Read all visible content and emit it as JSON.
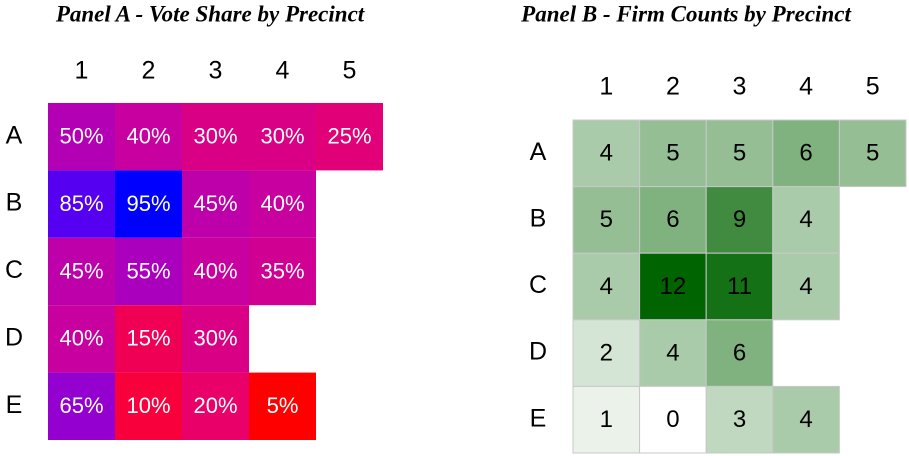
{
  "chart_data": [
    {
      "type": "heatmap",
      "title": "Panel A - Vote Share by Precinct",
      "x_categories": [
        "1",
        "2",
        "3",
        "4",
        "5"
      ],
      "y_categories": [
        "A",
        "B",
        "C",
        "D",
        "E"
      ],
      "values": [
        [
          50,
          40,
          30,
          30,
          25
        ],
        [
          85,
          95,
          45,
          40,
          null
        ],
        [
          45,
          55,
          40,
          35,
          null
        ],
        [
          40,
          15,
          30,
          null,
          null
        ],
        [
          65,
          10,
          20,
          5,
          null
        ]
      ],
      "value_labels": [
        [
          "50%",
          "40%",
          "30%",
          "30%",
          "25%"
        ],
        [
          "85%",
          "95%",
          "45%",
          "40%",
          null
        ],
        [
          "45%",
          "55%",
          "40%",
          "35%",
          null
        ],
        [
          "40%",
          "15%",
          "30%",
          null,
          null
        ],
        [
          "65%",
          "10%",
          "20%",
          "5%",
          null
        ]
      ],
      "colormap": [
        "#ff0000",
        "#0000ff"
      ]
    },
    {
      "type": "heatmap",
      "title": "Panel B - Firm Counts by Precinct",
      "x_categories": [
        "1",
        "2",
        "3",
        "4",
        "5"
      ],
      "y_categories": [
        "A",
        "B",
        "C",
        "D",
        "E"
      ],
      "values": [
        [
          4,
          5,
          5,
          6,
          5
        ],
        [
          5,
          6,
          9,
          4,
          null
        ],
        [
          4,
          12,
          11,
          4,
          null
        ],
        [
          2,
          4,
          6,
          null,
          null
        ],
        [
          1,
          0,
          3,
          4,
          null
        ]
      ],
      "colormap": [
        "#ffffff",
        "#006400"
      ]
    }
  ]
}
